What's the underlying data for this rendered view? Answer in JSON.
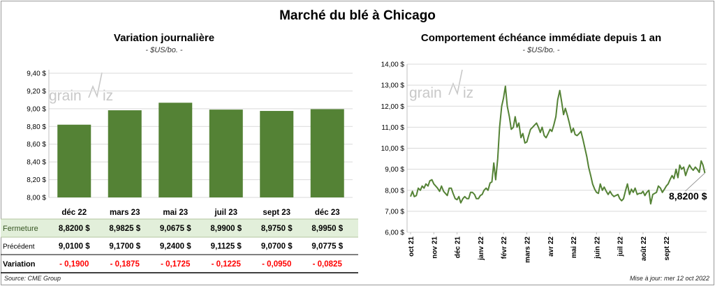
{
  "title": "Marché du blé à Chicago",
  "footer": {
    "source": "Source: CME Group",
    "updated": "Mise à jour: mer 12 oct 2022"
  },
  "watermark": {
    "left": "grain",
    "right": "iz"
  },
  "colors": {
    "bar": "#548235",
    "line": "#548235",
    "fermeture_row": "#e2efda",
    "negative": "#ff0000"
  },
  "chart_data": [
    {
      "type": "bar",
      "title": "Variation journalière",
      "subtitle": "- $US/bo. -",
      "categories": [
        "déc 22",
        "mars 23",
        "mai 23",
        "juil 23",
        "sept 23",
        "déc 23"
      ],
      "values": [
        8.82,
        8.9825,
        9.0675,
        8.99,
        8.975,
        8.995
      ],
      "ylim": [
        8.0,
        9.4
      ],
      "yticks": [
        "9,40 $",
        "9,20 $",
        "9,00 $",
        "8,80 $",
        "8,60 $",
        "8,40 $",
        "8,20 $",
        "8,00 $"
      ],
      "table": {
        "rows": [
          {
            "label": "Fermeture",
            "values": [
              "8,8200 $",
              "8,9825 $",
              "9,0675 $",
              "8,9900 $",
              "8,9750 $",
              "8,9950 $"
            ]
          },
          {
            "label": "Précédent",
            "values": [
              "9,0100 $",
              "9,1700 $",
              "9,2400 $",
              "9,1125 $",
              "9,0700 $",
              "9,0775 $"
            ]
          },
          {
            "label": "Variation",
            "values": [
              "- 0,1900",
              "- 0,1875",
              "- 0,1725",
              "- 0,1225",
              "- 0,0950",
              "- 0,0825"
            ]
          }
        ]
      }
    },
    {
      "type": "line",
      "title": "Comportement échéance immédiate depuis 1 an",
      "subtitle": "- $US/bo. -",
      "ylim": [
        6.0,
        14.0
      ],
      "yticks": [
        "14,00 $",
        "13,00 $",
        "12,00 $",
        "11,00 $",
        "10,00 $",
        "9,00 $",
        "8,00 $",
        "7,00 $",
        "6,00 $"
      ],
      "xticks": [
        "oct 21",
        "nov 21",
        "déc 21",
        "janv 22",
        "févr 22",
        "mars 22",
        "avr 22",
        "mai 22",
        "juin 22",
        "juil 22",
        "août 22",
        "sept 22"
      ],
      "last_value_label": "8,8200 $",
      "series": [
        {
          "x": [
            0,
            0.08,
            0.16,
            0.25,
            0.33,
            0.42,
            0.5,
            0.58,
            0.66,
            0.75,
            0.83,
            0.92,
            1,
            1.08,
            1.16,
            1.25,
            1.33,
            1.42,
            1.5,
            1.58,
            1.66,
            1.75,
            1.83,
            1.92,
            2,
            2.08,
            2.16,
            2.25,
            2.33,
            2.42,
            2.5,
            2.58,
            2.66,
            2.75,
            2.83,
            2.92,
            3,
            3.08,
            3.16,
            3.25,
            3.33,
            3.42,
            3.5,
            3.58,
            3.66,
            3.75,
            3.83,
            3.92,
            4,
            4.08,
            4.16,
            4.25,
            4.33,
            4.42,
            4.5,
            4.58,
            4.66,
            4.75,
            4.83,
            4.92,
            5,
            5.08,
            5.16,
            5.25,
            5.33,
            5.42,
            5.5,
            5.58,
            5.66,
            5.75,
            5.83,
            5.92,
            6,
            6.08,
            6.16,
            6.25,
            6.33,
            6.42,
            6.5,
            6.58,
            6.66,
            6.75,
            6.83,
            6.92,
            7,
            7.08,
            7.16,
            7.25,
            7.33,
            7.42,
            7.5,
            7.58,
            7.66,
            7.75,
            7.83,
            7.92,
            8,
            8.08,
            8.16,
            8.25,
            8.33,
            8.42,
            8.5,
            8.58,
            8.66,
            8.75,
            8.83,
            8.92,
            9,
            9.08,
            9.16,
            9.25,
            9.33,
            9.42,
            9.5,
            9.58,
            9.66,
            9.75,
            9.83,
            9.92,
            10,
            10.08,
            10.16,
            10.25,
            10.33,
            10.42,
            10.5,
            10.58,
            10.66,
            10.75,
            10.83,
            10.92,
            11,
            11.08,
            11.16,
            11.25,
            11.33,
            11.42,
            11.5,
            11.58,
            11.66,
            11.75,
            11.83,
            11.92,
            12,
            12.08,
            12.16,
            12.25,
            12.33,
            12.42,
            12.5,
            12.58,
            12.66
          ],
          "y": [
            7.7,
            7.95,
            7.7,
            7.75,
            8.1,
            8.0,
            8.2,
            8.1,
            8.3,
            8.2,
            8.45,
            8.5,
            8.3,
            8.2,
            8.1,
            7.95,
            8.2,
            7.95,
            7.85,
            7.75,
            8.1,
            8.1,
            7.85,
            7.6,
            7.55,
            7.7,
            7.4,
            7.6,
            7.7,
            7.6,
            7.6,
            7.9,
            7.9,
            7.8,
            7.6,
            7.6,
            7.75,
            7.8,
            8.0,
            8.1,
            8.0,
            8.35,
            8.4,
            9.3,
            8.5,
            9.5,
            11.0,
            12.0,
            12.4,
            12.95,
            12.0,
            11.5,
            10.9,
            11.0,
            11.5,
            11.0,
            11.2,
            10.5,
            10.7,
            10.25,
            10.3,
            10.6,
            10.9,
            11.0,
            11.1,
            11.2,
            11.0,
            10.75,
            11.0,
            10.6,
            10.5,
            10.7,
            10.9,
            10.8,
            11.1,
            11.5,
            12.3,
            12.75,
            12.2,
            11.6,
            11.9,
            11.55,
            11.2,
            10.75,
            10.95,
            10.65,
            10.6,
            10.7,
            10.8,
            10.4,
            10.0,
            9.6,
            9.1,
            8.7,
            8.3,
            8.05,
            7.9,
            7.85,
            8.3,
            8.0,
            8.15,
            7.95,
            7.8,
            7.95,
            7.8,
            7.7,
            7.75,
            7.8,
            7.6,
            7.5,
            7.6,
            8.0,
            8.3,
            7.8,
            8.05,
            7.9,
            8.1,
            7.8,
            7.85,
            7.85,
            7.95,
            7.75,
            7.9,
            8.0,
            7.35,
            7.8,
            7.85,
            7.9,
            8.2,
            8.1,
            7.9,
            8.05,
            8.2,
            8.3,
            8.5,
            8.7,
            8.55,
            9.0,
            8.6,
            9.2,
            9.0,
            9.1,
            8.7,
            9.0,
            9.2,
            9.05,
            8.95,
            9.1,
            9.0,
            8.85,
            9.4,
            9.2,
            8.82
          ]
        }
      ]
    }
  ]
}
